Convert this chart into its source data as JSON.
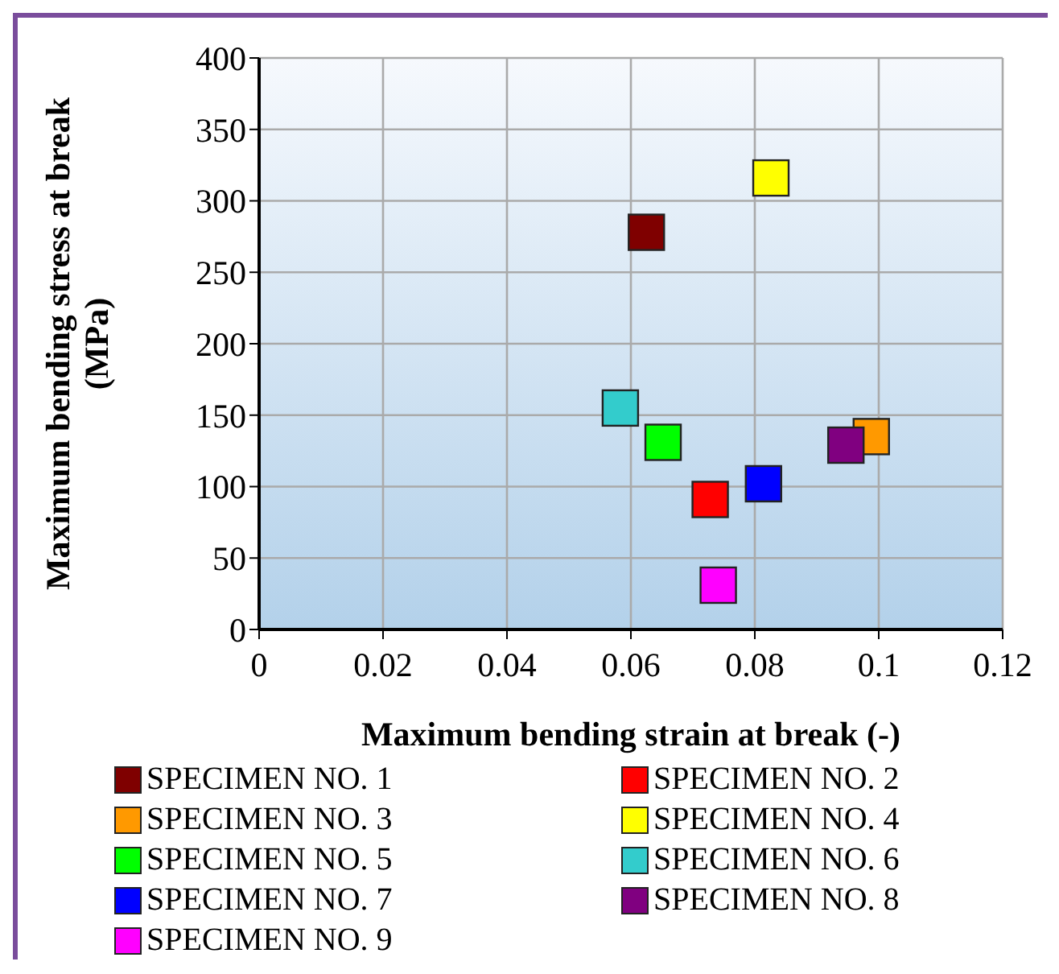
{
  "chart_data": {
    "type": "scatter",
    "xlabel": "Maximum bending strain at break (-)",
    "ylabel": "Maximum bending stress at break (MPa)",
    "xlim": [
      0,
      0.12
    ],
    "xticks": [
      0,
      0.02,
      0.04,
      0.06,
      0.08,
      0.1,
      0.12
    ],
    "ylim": [
      0,
      400
    ],
    "yticks": [
      0,
      50,
      100,
      150,
      200,
      250,
      300,
      350,
      400
    ],
    "grid": true,
    "legend": "bottom",
    "marker": "square",
    "series": [
      {
        "name": "SPECIMEN NO. 1",
        "color": "#7f0000",
        "x": [
          0.0625
        ],
        "values": [
          278
        ]
      },
      {
        "name": "SPECIMEN NO. 2",
        "color": "#ff0000",
        "x": [
          0.0728
        ],
        "values": [
          91
        ]
      },
      {
        "name": "SPECIMEN NO. 3",
        "color": "#ff9900",
        "x": [
          0.0988
        ],
        "values": [
          135
        ]
      },
      {
        "name": "SPECIMEN NO. 4",
        "color": "#ffff00",
        "x": [
          0.0826
        ],
        "values": [
          316
        ]
      },
      {
        "name": "SPECIMEN NO. 5",
        "color": "#00ff00",
        "x": [
          0.0652
        ],
        "values": [
          131
        ]
      },
      {
        "name": "SPECIMEN NO. 6",
        "color": "#33cccc",
        "x": [
          0.0583
        ],
        "values": [
          155
        ]
      },
      {
        "name": "SPECIMEN NO. 7",
        "color": "#0000ff",
        "x": [
          0.0814
        ],
        "values": [
          102
        ]
      },
      {
        "name": "SPECIMEN NO. 8",
        "color": "#800080",
        "x": [
          0.0947
        ],
        "values": [
          129
        ]
      },
      {
        "name": "SPECIMEN NO. 9",
        "color": "#ff00ff",
        "x": [
          0.0741
        ],
        "values": [
          31
        ]
      }
    ]
  }
}
